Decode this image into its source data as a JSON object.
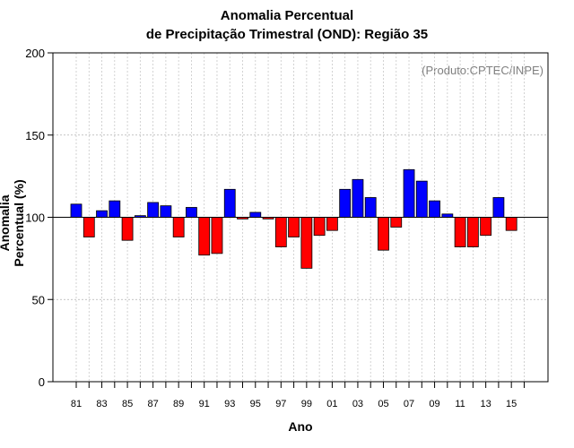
{
  "chart_data": {
    "type": "bar",
    "title_line1": "Anomalia Percentual",
    "title_line2": "de Precipitação Trimestral (OND): Região 35",
    "xlabel": "Ano",
    "ylabel": "Anomalia Percentual (%)",
    "source": "(Produto:CPTEC/INPE)",
    "ylim": [
      0,
      200
    ],
    "yticks": [
      0,
      50,
      100,
      150,
      200
    ],
    "baseline": 100,
    "x_ticks": [
      "81",
      "83",
      "85",
      "87",
      "89",
      "91",
      "93",
      "95",
      "97",
      "99",
      "01",
      "03",
      "05",
      "07",
      "09",
      "11",
      "13",
      "15"
    ],
    "categories": [
      "1981",
      "1982",
      "1983",
      "1984",
      "1985",
      "1986",
      "1987",
      "1988",
      "1989",
      "1990",
      "1991",
      "1992",
      "1993",
      "1994",
      "1995",
      "1996",
      "1997",
      "1998",
      "1999",
      "2000",
      "2001",
      "2002",
      "2003",
      "2004",
      "2005",
      "2006",
      "2007",
      "2008",
      "2009",
      "2010",
      "2011",
      "2012",
      "2013",
      "2014",
      "2015"
    ],
    "values": [
      108,
      88,
      104,
      110,
      86,
      101,
      109,
      107,
      88,
      106,
      77,
      78,
      117,
      99,
      103,
      99,
      82,
      88,
      69,
      89,
      92,
      117,
      123,
      112,
      80,
      94,
      129,
      122,
      110,
      102,
      82,
      82,
      89,
      112,
      92
    ],
    "colors": {
      "above": "#0000ff",
      "below": "#ff0000"
    }
  }
}
